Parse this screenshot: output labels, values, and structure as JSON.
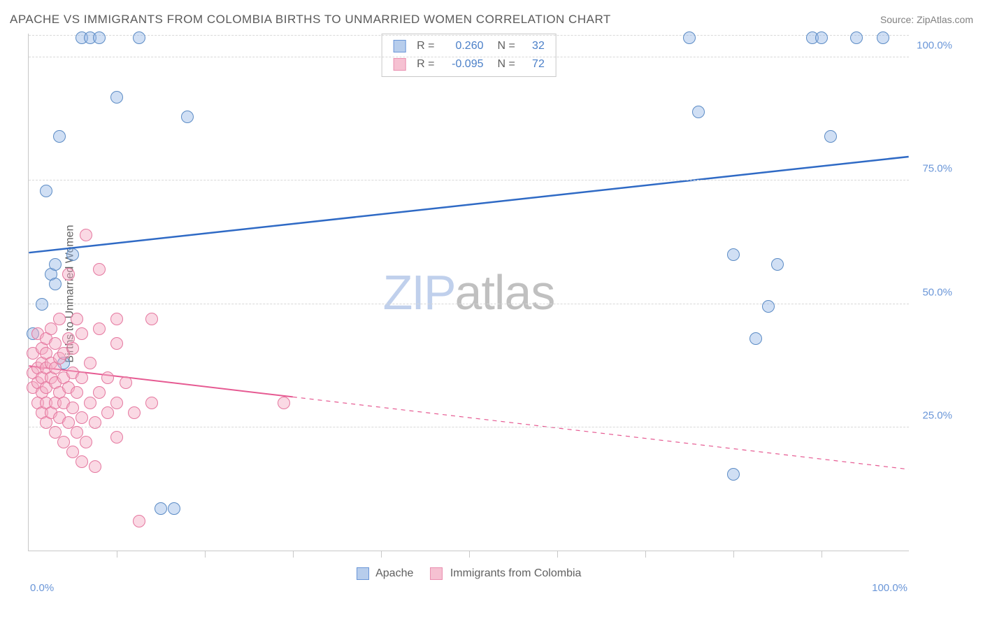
{
  "title": "APACHE VS IMMIGRANTS FROM COLOMBIA BIRTHS TO UNMARRIED WOMEN CORRELATION CHART",
  "source": "Source: ZipAtlas.com",
  "ylabel": "Births to Unmarried Women",
  "watermark_a": "ZIP",
  "watermark_b": "atlas",
  "chart": {
    "type": "scatter",
    "xlim": [
      0,
      100
    ],
    "ylim": [
      0,
      105
    ],
    "x_ticks_minor": [
      10,
      20,
      30,
      40,
      50,
      60,
      70,
      80,
      90
    ],
    "x_labels": [
      {
        "v": 0,
        "label": "0.0%",
        "cls": "left"
      },
      {
        "v": 100,
        "label": "100.0%",
        "cls": "right"
      }
    ],
    "y_grid": [
      25,
      50,
      75,
      100,
      104.5
    ],
    "y_labels": [
      {
        "v": 25,
        "label": "25.0%"
      },
      {
        "v": 50,
        "label": "50.0%"
      },
      {
        "v": 75,
        "label": "75.0%"
      },
      {
        "v": 100,
        "label": "100.0%"
      }
    ],
    "series": [
      {
        "name": "Apache",
        "marker_fill": "rgba(150,185,230,0.45)",
        "marker_stroke": "#5b8bc5",
        "swatch_fill": "#b7cdec",
        "swatch_stroke": "#6a96d8",
        "line_color": "#2f6ac5",
        "line_width": 2.5,
        "R": "0.260",
        "N": "32",
        "trend": {
          "x1": 0,
          "y1": 60.5,
          "x2": 100,
          "y2": 80,
          "x_solid_end": 100
        },
        "points": [
          [
            0.5,
            44
          ],
          [
            1.5,
            50
          ],
          [
            2,
            73
          ],
          [
            2.5,
            56
          ],
          [
            3,
            58
          ],
          [
            3,
            54
          ],
          [
            3.5,
            84
          ],
          [
            4,
            38
          ],
          [
            5,
            60
          ],
          [
            6,
            104
          ],
          [
            7,
            104
          ],
          [
            8,
            104
          ],
          [
            10,
            92
          ],
          [
            12.5,
            104
          ],
          [
            15,
            8.5
          ],
          [
            16.5,
            8.5
          ],
          [
            18,
            88
          ],
          [
            75,
            104
          ],
          [
            76,
            89
          ],
          [
            80,
            60
          ],
          [
            80,
            15.5
          ],
          [
            82.5,
            43
          ],
          [
            84,
            49.5
          ],
          [
            85,
            58
          ],
          [
            89,
            104
          ],
          [
            90,
            104
          ],
          [
            91,
            84
          ],
          [
            94,
            104
          ],
          [
            97,
            104
          ]
        ]
      },
      {
        "name": "Immigrants from Colombia",
        "marker_fill": "rgba(245,170,195,0.45)",
        "marker_stroke": "#e5779f",
        "swatch_fill": "#f6c1d2",
        "swatch_stroke": "#ea8fb0",
        "line_color": "#e65a92",
        "line_width": 2,
        "R": "-0.095",
        "N": "72",
        "trend": {
          "x1": 0,
          "y1": 37.5,
          "x2": 100,
          "y2": 16.5,
          "x_solid_end": 30
        },
        "points": [
          [
            0.5,
            33
          ],
          [
            0.5,
            36
          ],
          [
            0.5,
            40
          ],
          [
            1,
            30
          ],
          [
            1,
            34
          ],
          [
            1,
            37
          ],
          [
            1,
            44
          ],
          [
            1.5,
            28
          ],
          [
            1.5,
            32
          ],
          [
            1.5,
            35
          ],
          [
            1.5,
            38
          ],
          [
            1.5,
            41
          ],
          [
            2,
            26
          ],
          [
            2,
            30
          ],
          [
            2,
            33
          ],
          [
            2,
            37
          ],
          [
            2,
            40
          ],
          [
            2,
            43
          ],
          [
            2.5,
            28
          ],
          [
            2.5,
            35
          ],
          [
            2.5,
            38
          ],
          [
            2.5,
            45
          ],
          [
            3,
            24
          ],
          [
            3,
            30
          ],
          [
            3,
            34
          ],
          [
            3,
            37
          ],
          [
            3,
            42
          ],
          [
            3.5,
            27
          ],
          [
            3.5,
            32
          ],
          [
            3.5,
            39
          ],
          [
            3.5,
            47
          ],
          [
            4,
            22
          ],
          [
            4,
            30
          ],
          [
            4,
            35
          ],
          [
            4,
            40
          ],
          [
            4.5,
            26
          ],
          [
            4.5,
            33
          ],
          [
            4.5,
            43
          ],
          [
            4.5,
            56
          ],
          [
            5,
            20
          ],
          [
            5,
            29
          ],
          [
            5,
            36
          ],
          [
            5,
            41
          ],
          [
            5.5,
            24
          ],
          [
            5.5,
            32
          ],
          [
            5.5,
            47
          ],
          [
            6,
            18
          ],
          [
            6,
            27
          ],
          [
            6,
            35
          ],
          [
            6,
            44
          ],
          [
            6.5,
            22
          ],
          [
            6.5,
            64
          ],
          [
            7,
            30
          ],
          [
            7,
            38
          ],
          [
            7.5,
            17
          ],
          [
            7.5,
            26
          ],
          [
            8,
            32
          ],
          [
            8,
            45
          ],
          [
            8,
            57
          ],
          [
            9,
            28
          ],
          [
            9,
            35
          ],
          [
            10,
            23
          ],
          [
            10,
            30
          ],
          [
            10,
            42
          ],
          [
            10,
            47
          ],
          [
            11,
            34
          ],
          [
            12,
            28
          ],
          [
            12.5,
            6
          ],
          [
            14,
            47
          ],
          [
            14,
            30
          ],
          [
            29,
            30
          ]
        ]
      }
    ]
  }
}
